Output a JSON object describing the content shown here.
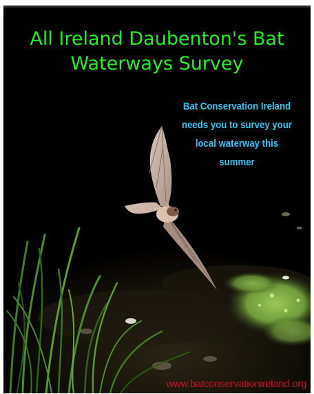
{
  "poster": {
    "title_line1": "All Ireland Daubenton's Bat",
    "title_line2": "Waterways Survey",
    "callout_line1": "Bat Conservation Ireland",
    "callout_line2": "needs you to survey your",
    "callout_line3": "local waterway this",
    "callout_line4": "summer",
    "website": "www.batconservationireland.org"
  },
  "colors": {
    "background": "#000000",
    "title": "#22ee22",
    "callout": "#2ec5f0",
    "website": "#c4122a"
  },
  "photo": {
    "subject": "bat-in-flight",
    "setting": "night-waterway-with-reeds-and-duckweed"
  }
}
